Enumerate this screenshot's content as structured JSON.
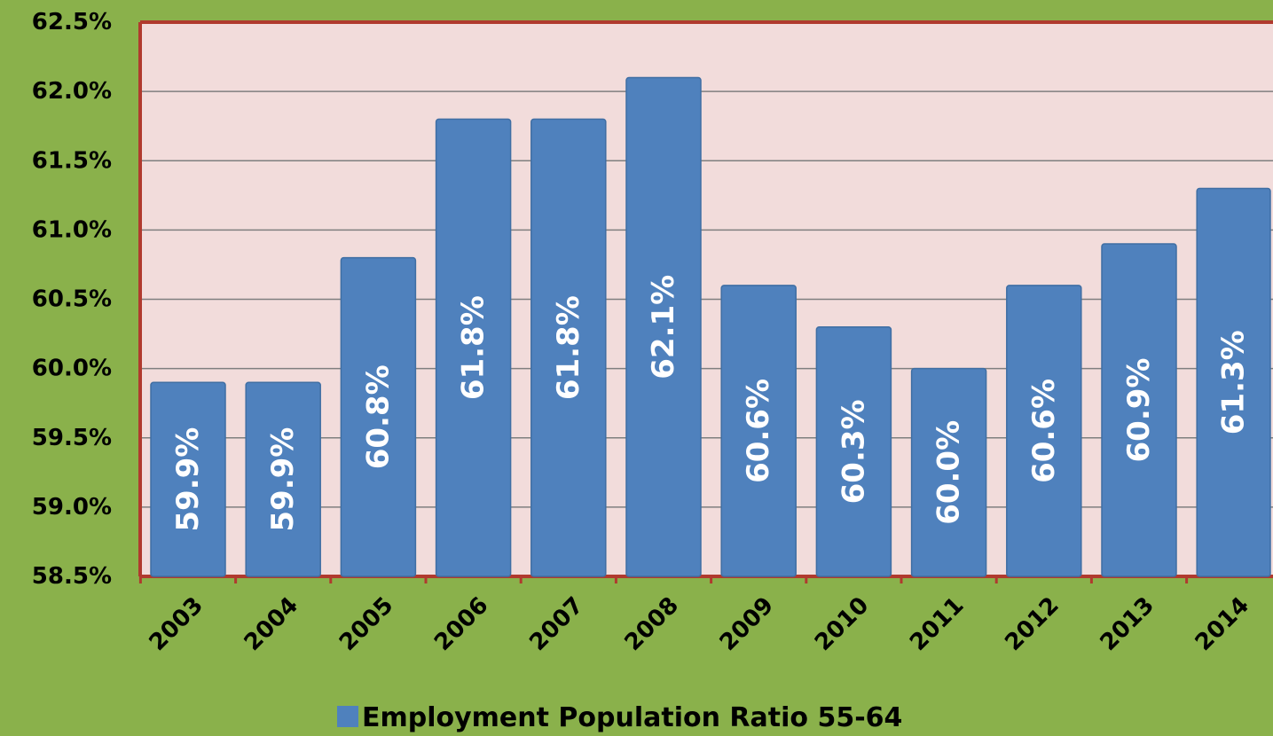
{
  "colors": {
    "background": "#8ab14b",
    "plot_area": "#f2dcdb",
    "plot_border": "#b03a2e",
    "bar": "#4f81bd",
    "gridline": "#7f7f7f",
    "data_label": "#ffffff"
  },
  "chart_data": {
    "type": "bar",
    "categories": [
      "2003",
      "2004",
      "2005",
      "2006",
      "2007",
      "2008",
      "2009",
      "2010",
      "2011",
      "2012",
      "2013",
      "2014"
    ],
    "series": [
      {
        "name": "Employment Population Ratio 55-64",
        "values": [
          59.9,
          59.9,
          60.8,
          61.8,
          61.8,
          62.1,
          60.6,
          60.3,
          60.0,
          60.6,
          60.9,
          61.3
        ],
        "value_labels": [
          "59.9%",
          "59.9%",
          "60.8%",
          "61.8%",
          "61.8%",
          "62.1%",
          "60.6%",
          "60.3%",
          "60.0%",
          "60.6%",
          "60.9%",
          "61.3%"
        ]
      }
    ],
    "ylim": [
      58.5,
      62.5
    ],
    "yticks": [
      58.5,
      59.0,
      59.5,
      60.0,
      60.5,
      61.0,
      61.5,
      62.0,
      62.5
    ],
    "ytick_labels": [
      "58.5%",
      "59.0%",
      "59.5%",
      "60.0%",
      "60.5%",
      "61.0%",
      "61.5%",
      "62.0%",
      "62.5%"
    ],
    "grid": true,
    "legend_position": "bottom",
    "title": "",
    "xlabel": "",
    "ylabel": ""
  }
}
